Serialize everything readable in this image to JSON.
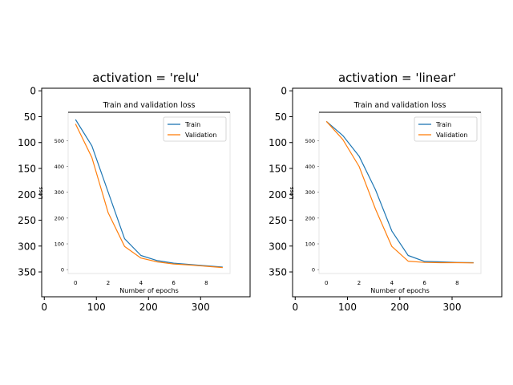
{
  "chart_data": [
    {
      "type": "image-of-line-chart",
      "title": "activation = 'relu'",
      "outer_xticks": [
        "0",
        "100",
        "200",
        "300"
      ],
      "outer_yticks": [
        "0",
        "50",
        "100",
        "150",
        "200",
        "250",
        "300",
        "350"
      ],
      "outer_xlim": [
        -5,
        395
      ],
      "outer_ylim": [
        398,
        -5
      ],
      "inner": {
        "type": "line",
        "title": "Train and validation loss",
        "xlabel": "Number of epochs",
        "ylabel": "Loss",
        "xticks": [
          "0",
          "2",
          "4",
          "6",
          "8"
        ],
        "yticks": [
          "0",
          "100",
          "200",
          "300",
          "400",
          "500"
        ],
        "xlim": [
          -0.45,
          9.45
        ],
        "ylim": [
          -15,
          610
        ],
        "legend": "top-right",
        "x": [
          0,
          1,
          2,
          3,
          4,
          5,
          6,
          7,
          8,
          9
        ],
        "series": [
          {
            "name": "Train",
            "color": "#1f77b4",
            "values": [
              582,
              480,
              300,
              120,
              55,
              35,
              25,
              20,
              15,
              10
            ]
          },
          {
            "name": "Validation",
            "color": "#ff7f0e",
            "values": [
              565,
              435,
              220,
              90,
              45,
              30,
              22,
              18,
              13,
              8
            ]
          }
        ]
      }
    },
    {
      "type": "image-of-line-chart",
      "title": "activation = 'linear'",
      "outer_xticks": [
        "0",
        "100",
        "200",
        "300"
      ],
      "outer_yticks": [
        "0",
        "50",
        "100",
        "150",
        "200",
        "250",
        "300",
        "350"
      ],
      "outer_xlim": [
        -5,
        395
      ],
      "outer_ylim": [
        398,
        -5
      ],
      "inner": {
        "type": "line",
        "title": "Train and validation loss",
        "xlabel": "Number of epochs",
        "ylabel": "Loss",
        "xticks": [
          "0",
          "2",
          "4",
          "6",
          "8"
        ],
        "yticks": [
          "0",
          "100",
          "200",
          "300",
          "400",
          "500"
        ],
        "xlim": [
          -0.45,
          9.45
        ],
        "ylim": [
          -15,
          610
        ],
        "legend": "top-right",
        "x": [
          0,
          1,
          2,
          3,
          4,
          5,
          6,
          7,
          8,
          9
        ],
        "series": [
          {
            "name": "Train",
            "color": "#1f77b4",
            "values": [
              575,
              520,
              440,
              310,
              150,
              55,
              32,
              30,
              28,
              27
            ]
          },
          {
            "name": "Validation",
            "color": "#ff7f0e",
            "values": [
              575,
              505,
              400,
              235,
              90,
              33,
              28,
              27,
              27,
              26
            ]
          }
        ]
      }
    }
  ]
}
